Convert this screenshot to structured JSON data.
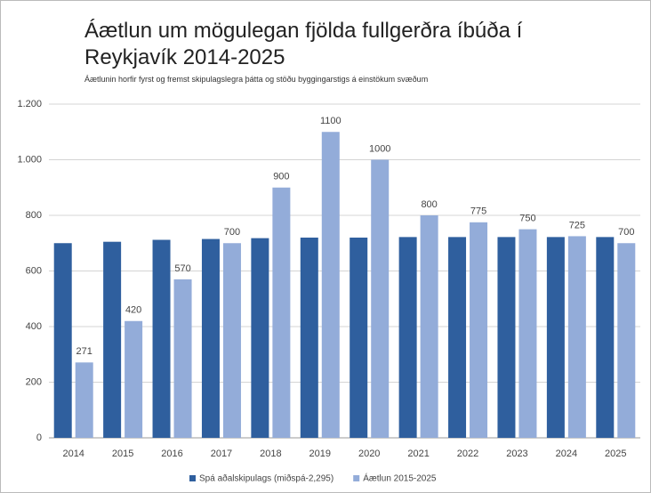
{
  "chart_data": {
    "type": "bar",
    "title": "Áætlun um mögulegan fjölda fullgerðra íbúða í Reykjavík 2014-2025",
    "subtitle": "Áætlunin horfir fyrst og fremst skipulagslegra þátta og stöðu byggingarstigs á einstökum svæðum",
    "categories": [
      "2014",
      "2015",
      "2016",
      "2017",
      "2018",
      "2019",
      "2020",
      "2021",
      "2022",
      "2023",
      "2024",
      "2025"
    ],
    "series": [
      {
        "name": "Spá aðalskipulags (miðspá-2,295)",
        "color": "#2f5f9e",
        "values": [
          700,
          705,
          712,
          715,
          718,
          720,
          720,
          722,
          722,
          722,
          722,
          722
        ]
      },
      {
        "name": "Áætlun 2015-2025",
        "color": "#93acd9",
        "values": [
          271,
          420,
          570,
          700,
          900,
          1100,
          1000,
          800,
          775,
          750,
          725,
          700
        ],
        "labels": true
      }
    ],
    "ylim": [
      0,
      1200
    ],
    "yticks": [
      0,
      200,
      400,
      600,
      800,
      {
        "value": 1000,
        "label": "1.000"
      },
      {
        "value": 1200,
        "label": "1.200"
      }
    ],
    "grid": true,
    "legend": "bottom"
  }
}
